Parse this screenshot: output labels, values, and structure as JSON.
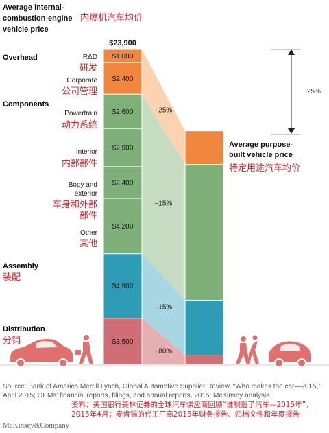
{
  "header": {
    "title_lines": [
      "Average internal-",
      "combustion-engine",
      "vehicle price"
    ],
    "title_cn": "内燃机汽车均价"
  },
  "right_header": {
    "title_lines": [
      "Average purpose-",
      "built vehicle price"
    ],
    "title_cn": "特定用途汽车均价"
  },
  "total_label": "$23,900",
  "reduction_label": "~25%",
  "categories": [
    {
      "name": "Overhead",
      "name_cn": "",
      "color": "#f0873e"
    },
    {
      "name": "Components",
      "name_cn": "",
      "color": "#7fb07a"
    },
    {
      "name": "Assembly",
      "name_cn": "装配",
      "color": "#2f9cb6"
    },
    {
      "name": "Distribution",
      "name_cn": "分销",
      "color": "#cf6e74"
    }
  ],
  "chart_data": {
    "type": "bar",
    "title": "Average internal-combustion-engine vehicle price",
    "unit": "$",
    "total": 23900,
    "bars": [
      {
        "label": "Average internal-combustion-engine vehicle price",
        "segments": [
          {
            "category": "Overhead",
            "label": "R&D",
            "label_cn": "研发",
            "value": 1000,
            "value_label": "$1,000"
          },
          {
            "category": "Overhead",
            "label": "Corporate",
            "label_cn": "公司管理",
            "value": 2400,
            "value_label": "$2,400"
          },
          {
            "category": "Components",
            "label": "Powertrain",
            "label_cn": "动力系统",
            "value": 2600,
            "value_label": "$2,600"
          },
          {
            "category": "Components",
            "label": "Interior",
            "label_cn": "内部部件",
            "value": 2900,
            "value_label": "$2,900"
          },
          {
            "category": "Components",
            "label": "Body and exterior",
            "label_cn": "车身和外部部件",
            "value": 2400,
            "value_label": "$2,400"
          },
          {
            "category": "Components",
            "label": "Other",
            "label_cn": "其他",
            "value": 4200,
            "value_label": "$4,200"
          },
          {
            "category": "Assembly",
            "label": "",
            "label_cn": "",
            "value": 4900,
            "value_label": "$4,900"
          },
          {
            "category": "Distribution",
            "label": "",
            "label_cn": "",
            "value": 3500,
            "value_label": "$3,500"
          }
        ]
      },
      {
        "label": "Average purpose-built vehicle price",
        "segments": [
          {
            "category": "Overhead",
            "value": 2550
          },
          {
            "category": "Components",
            "value": 10300
          },
          {
            "category": "Assembly",
            "value": 4170
          },
          {
            "category": "Distribution",
            "value": 700
          }
        ]
      }
    ],
    "reductions": [
      {
        "category": "Overhead",
        "label": "–25%"
      },
      {
        "category": "Components",
        "label": "–15%"
      },
      {
        "category": "Assembly",
        "label": "–15%"
      },
      {
        "category": "Distribution",
        "label": "–80%"
      }
    ],
    "total_reduction": "~25%"
  },
  "source": {
    "text": "Source: Bank of America Merrill Lynch, Global Automotive Supplier Review, “Who makes the car—2015,” April 2015; OEMs’ financial reports, filings, and annual reports, 2015; McKinsey analysis",
    "text_cn": "资料：美国银行美林证券的全球汽车供应商回顾“谁制造了汽车—2015年”，2015年4月；麦肯锡的代工厂商2015年财务报告、归档文件和年度报告"
  },
  "logo": "McKinsey&Company"
}
